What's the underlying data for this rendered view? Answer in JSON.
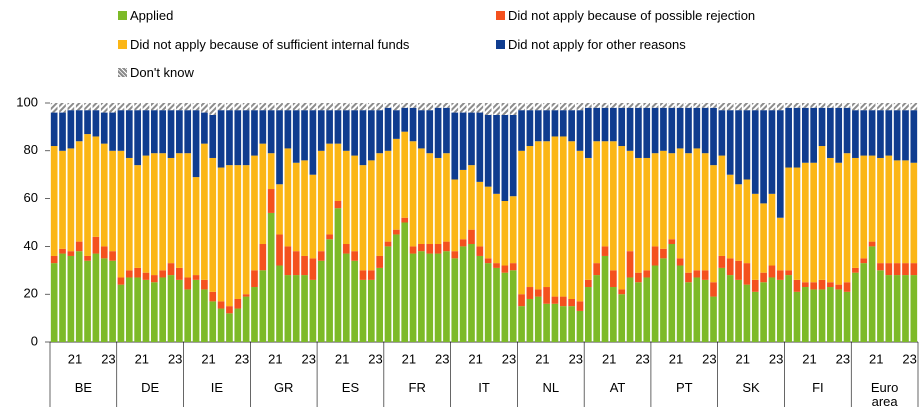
{
  "chart_data": {
    "type": "stacked_bar",
    "groups": [
      "BE",
      "DE",
      "IE",
      "GR",
      "ES",
      "FR",
      "IT",
      "NL",
      "AT",
      "PT",
      "SK",
      "FI",
      "Euro area"
    ],
    "categories": [
      null,
      null,
      "21",
      null,
      null,
      null,
      "23",
      null,
      null,
      null,
      "21",
      null,
      null,
      null,
      "23",
      null,
      null,
      null,
      "21",
      null,
      null,
      null,
      "23",
      null,
      null,
      null,
      "21",
      null,
      null,
      null,
      "23",
      null,
      null,
      null,
      "21",
      null,
      null,
      null,
      "23",
      null,
      null,
      null,
      "21",
      null,
      null,
      null,
      "23",
      null,
      null,
      null,
      "21",
      null,
      null,
      null,
      "23",
      null,
      null,
      null,
      "21",
      null,
      null,
      null,
      "23",
      null,
      null,
      null,
      "21",
      null,
      null,
      null,
      "23",
      null,
      null,
      null,
      "21",
      null,
      null,
      null,
      "23",
      null,
      null,
      null,
      "21",
      null,
      null,
      null,
      "23",
      null,
      null,
      null,
      "21",
      null,
      null,
      null,
      "23",
      null,
      null,
      null,
      "21",
      null,
      null,
      null,
      "23",
      null
    ],
    "series": [
      {
        "name": "Applied",
        "color": "#7dba28",
        "values": [
          33,
          37,
          36,
          38,
          34,
          37,
          35,
          34,
          24,
          27,
          27,
          26,
          25,
          27,
          28,
          26,
          22,
          26,
          22,
          17,
          14,
          12,
          14,
          19,
          23,
          30,
          54,
          32,
          28,
          28,
          28,
          26,
          34,
          43,
          56,
          37,
          34,
          26,
          26,
          31,
          40,
          45,
          50,
          37,
          38,
          37,
          37,
          38,
          35,
          40,
          41,
          36,
          33,
          31,
          29,
          30,
          15,
          18,
          19,
          16,
          16,
          15,
          15,
          13,
          23,
          28,
          36,
          23,
          20,
          27,
          25,
          27,
          32,
          35,
          41,
          32,
          25,
          27,
          26,
          19,
          31,
          28,
          26,
          24,
          21,
          25,
          27,
          26,
          28,
          21,
          23,
          22,
          22,
          23,
          22,
          21,
          29,
          33,
          40,
          30,
          28,
          28,
          28,
          28
        ]
      },
      {
        "name": "Did not apply because of possible rejection",
        "color": "#f4511e",
        "values": [
          3,
          2,
          2,
          4,
          2,
          7,
          5,
          4,
          3,
          3,
          4,
          3,
          3,
          3,
          5,
          5,
          5,
          2,
          4,
          4,
          3,
          3,
          4,
          1,
          7,
          11,
          10,
          13,
          12,
          10,
          8,
          9,
          4,
          2,
          3,
          4,
          4,
          4,
          4,
          5,
          2,
          2,
          2,
          3,
          3,
          4,
          4,
          4,
          3,
          3,
          6,
          4,
          2,
          2,
          3,
          3,
          5,
          5,
          3,
          7,
          3,
          4,
          3,
          4,
          3,
          5,
          4,
          7,
          2,
          11,
          4,
          3,
          8,
          4,
          2,
          3,
          4,
          3,
          4,
          6,
          5,
          7,
          8,
          9,
          5,
          4,
          5,
          4,
          2,
          5,
          2,
          3,
          4,
          2,
          2,
          4,
          2,
          2,
          2,
          3,
          5,
          5,
          5,
          5
        ]
      },
      {
        "name": "Did not apply because of sufficient internal funds",
        "color": "#fbb616",
        "values": [
          46,
          41,
          43,
          42,
          51,
          42,
          43,
          42,
          53,
          47,
          43,
          49,
          51,
          49,
          44,
          48,
          52,
          41,
          57,
          56,
          56,
          59,
          56,
          54,
          48,
          42,
          15,
          21,
          41,
          37,
          40,
          35,
          42,
          38,
          24,
          39,
          40,
          44,
          46,
          43,
          38,
          38,
          36,
          44,
          40,
          38,
          36,
          37,
          30,
          29,
          27,
          27,
          30,
          29,
          27,
          28,
          60,
          59,
          62,
          61,
          67,
          67,
          66,
          63,
          51,
          51,
          44,
          54,
          60,
          42,
          48,
          47,
          39,
          41,
          36,
          46,
          50,
          51,
          49,
          49,
          42,
          35,
          32,
          35,
          36,
          29,
          30,
          22,
          43,
          47,
          50,
          50,
          56,
          52,
          51,
          54,
          46,
          43,
          36,
          44,
          45,
          43,
          43,
          42
        ]
      },
      {
        "name": "Did not apply for other reasons",
        "color": "#0f3c8f",
        "values": [
          14,
          16,
          16,
          13,
          10,
          11,
          13,
          16,
          17,
          20,
          23,
          19,
          18,
          18,
          20,
          18,
          18,
          28,
          13,
          18,
          24,
          23,
          23,
          23,
          19,
          14,
          18,
          31,
          16,
          22,
          21,
          27,
          17,
          14,
          14,
          17,
          19,
          23,
          21,
          18,
          18,
          12,
          10,
          14,
          16,
          18,
          21,
          19,
          28,
          24,
          22,
          29,
          30,
          33,
          36,
          34,
          17,
          15,
          13,
          13,
          11,
          11,
          13,
          17,
          21,
          14,
          14,
          14,
          16,
          18,
          21,
          21,
          19,
          18,
          19,
          17,
          19,
          17,
          19,
          24,
          19,
          27,
          31,
          29,
          35,
          39,
          35,
          45,
          25,
          25,
          23,
          23,
          16,
          21,
          23,
          19,
          20,
          19,
          19,
          20,
          19,
          21,
          21,
          22
        ]
      },
      {
        "name": "Don't know",
        "color": "#8c8c8c",
        "values": [
          4,
          4,
          3,
          3,
          3,
          3,
          4,
          4,
          3,
          3,
          3,
          3,
          3,
          3,
          3,
          3,
          3,
          3,
          4,
          5,
          3,
          3,
          3,
          3,
          3,
          3,
          3,
          3,
          3,
          3,
          3,
          3,
          3,
          3,
          3,
          3,
          3,
          3,
          3,
          3,
          2,
          3,
          2,
          2,
          3,
          3,
          2,
          2,
          4,
          4,
          4,
          4,
          5,
          5,
          5,
          5,
          3,
          3,
          3,
          3,
          3,
          3,
          3,
          3,
          2,
          2,
          2,
          2,
          2,
          2,
          2,
          2,
          2,
          2,
          2,
          2,
          2,
          2,
          2,
          2,
          3,
          3,
          3,
          3,
          3,
          3,
          3,
          3,
          2,
          2,
          2,
          2,
          2,
          2,
          2,
          2,
          3,
          3,
          3,
          3,
          3,
          3,
          3,
          3
        ]
      }
    ],
    "ylim": [
      0,
      100
    ],
    "yticks": [
      0,
      20,
      40,
      60,
      80,
      100
    ]
  }
}
